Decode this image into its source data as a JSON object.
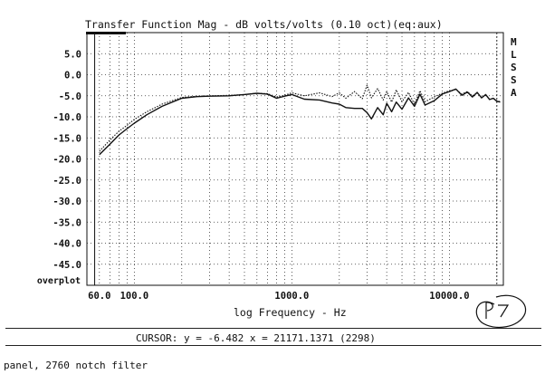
{
  "chart_data": {
    "type": "line",
    "title": "Transfer Function Mag - dB volts/volts (0.10 oct)(eq:aux)",
    "xlabel": "log Frequency - Hz",
    "ylabel": "",
    "side_label": [
      "M",
      "L",
      "S",
      "S",
      "A"
    ],
    "overplot_label": "overplot",
    "xscale": "log",
    "xlim": [
      50,
      22000
    ],
    "ylim": [
      -50,
      10
    ],
    "x_ticks": [
      {
        "value": 60,
        "label": "60.0"
      },
      {
        "value": 100,
        "label": "100.0"
      },
      {
        "value": 1000,
        "label": "1000.0"
      },
      {
        "value": 10000,
        "label": "10000.0"
      }
    ],
    "y_ticks": [
      {
        "value": 5,
        "label": "5.0"
      },
      {
        "value": 0,
        "label": "0.0"
      },
      {
        "value": -5,
        "label": "-5.0"
      },
      {
        "value": -10,
        "label": "-10.0"
      },
      {
        "value": -15,
        "label": "-15.0"
      },
      {
        "value": -20,
        "label": "-20.0"
      },
      {
        "value": -25,
        "label": "-25.0"
      },
      {
        "value": -30,
        "label": "-30.0"
      },
      {
        "value": -35,
        "label": "-35.0"
      },
      {
        "value": -40,
        "label": "-40.0"
      },
      {
        "value": -45,
        "label": "-45.0"
      }
    ],
    "grid": true,
    "series": [
      {
        "style": "solid",
        "x": [
          60,
          70,
          80,
          90,
          100,
          120,
          150,
          200,
          250,
          300,
          400,
          500,
          600,
          700,
          800,
          900,
          1000,
          1200,
          1500,
          1800,
          2000,
          2200,
          2500,
          2800,
          3000,
          3200,
          3500,
          3800,
          4000,
          4300,
          4600,
          5000,
          5500,
          6000,
          6500,
          7000,
          8000,
          9000,
          10000,
          11000,
          12000,
          13000,
          14000,
          15000,
          16000,
          17000,
          18000,
          19000,
          20000,
          21000
        ],
        "y": [
          -19,
          -16.5,
          -14.3,
          -12.8,
          -11.5,
          -9.5,
          -7.5,
          -5.6,
          -5.2,
          -5.1,
          -5.0,
          -4.7,
          -4.4,
          -4.6,
          -5.6,
          -5.1,
          -4.7,
          -5.8,
          -6.0,
          -6.7,
          -7.0,
          -7.8,
          -8.0,
          -8.0,
          -9.0,
          -10.5,
          -7.8,
          -9.5,
          -6.8,
          -8.8,
          -6.5,
          -8.2,
          -5.5,
          -7.5,
          -4.6,
          -7.2,
          -6.2,
          -4.6,
          -4.0,
          -3.4,
          -4.9,
          -4.1,
          -5.3,
          -4.2,
          -5.5,
          -4.7,
          -5.9,
          -5.6,
          -6.3,
          -6.5
        ]
      },
      {
        "style": "dotted",
        "x": [
          60,
          70,
          80,
          90,
          100,
          120,
          150,
          200,
          250,
          300,
          400,
          500,
          600,
          700,
          800,
          900,
          1000,
          1200,
          1500,
          1800,
          2000,
          2200,
          2500,
          2800,
          3000,
          3200,
          3500,
          3800,
          4000,
          4300,
          4600,
          5000,
          5500,
          6000,
          6500,
          7000,
          8000,
          9000,
          10000,
          11000,
          12000,
          13000,
          14000,
          15000,
          16000,
          17000,
          18000,
          19000,
          20000,
          21000
        ],
        "y": [
          -18.2,
          -15.5,
          -13.4,
          -12.0,
          -10.6,
          -8.8,
          -7.0,
          -5.4,
          -5.1,
          -5.0,
          -4.9,
          -4.7,
          -4.4,
          -4.5,
          -5.3,
          -4.9,
          -4.3,
          -5.0,
          -4.3,
          -5.2,
          -4.3,
          -5.6,
          -4.0,
          -5.7,
          -2.5,
          -5.5,
          -3.3,
          -6.0,
          -4.0,
          -6.5,
          -3.6,
          -6.4,
          -4.2,
          -7.0,
          -3.8,
          -6.4,
          -5.3,
          -4.4,
          -3.8,
          -3.5,
          -4.6,
          -4.0,
          -5.0,
          -4.3,
          -5.4,
          -4.8,
          -5.8,
          -5.6,
          -6.2,
          -6.4
        ]
      }
    ]
  },
  "cursor_readout": "CURSOR: y = -6.482 x = 21171.1371 (2298)",
  "footnote": "panel, 2760 notch filter",
  "colors": {
    "ink": "#111111",
    "grid": "#333333",
    "background": "#ffffff"
  }
}
